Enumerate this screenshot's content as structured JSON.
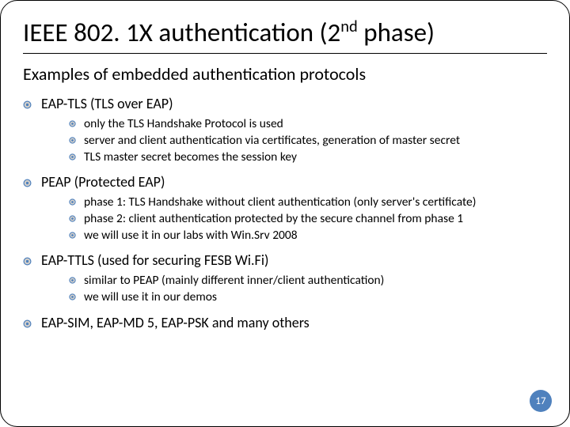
{
  "colors": {
    "text": "#000000",
    "background": "#ffffff",
    "bullet_stroke": "#4f81bd",
    "bullet_fill": "#d7d2cb",
    "inner_bullet_fill": "#4f81bd",
    "pagenum_bg": "#4f81bd",
    "pagenum_fg": "#ffffff",
    "divider": "#000000",
    "border": "#000000"
  },
  "typography": {
    "family": "Calibri",
    "title_size_pt": 25,
    "subtitle_size_pt": 17,
    "lvl1_size_pt": 14,
    "lvl2_size_pt": 12
  },
  "title_parts": {
    "before": "IEEE 802. 1X authentication (2",
    "super": "nd",
    "after": " phase)"
  },
  "subtitle": "Examples of embedded authentication protocols",
  "sections": [
    {
      "heading": "EAP-TLS (TLS over EAP)",
      "items": [
        "only the TLS Handshake Protocol is used",
        "server and client authentication via certificates, generation of master secret",
        "TLS master secret becomes the session key"
      ]
    },
    {
      "heading": "PEAP (Protected EAP)",
      "items": [
        "phase 1: TLS Handshake without client authentication (only server's certificate)",
        "phase 2: client authentication protected by the secure channel from phase 1",
        "we will use it in our labs with Win.Srv 2008"
      ]
    },
    {
      "heading": "EAP-TTLS (used for securing FESB Wi.Fi)",
      "items": [
        "similar to PEAP (mainly different inner/client authentication)",
        "we will use it in our demos"
      ]
    },
    {
      "heading": "EAP-SIM, EAP-MD 5, EAP-PSK and many others",
      "items": []
    }
  ],
  "page_number": "17"
}
